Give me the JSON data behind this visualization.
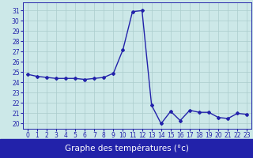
{
  "x": [
    0,
    1,
    2,
    3,
    4,
    5,
    6,
    7,
    8,
    9,
    10,
    11,
    12,
    13,
    14,
    15,
    16,
    17,
    18,
    19,
    20,
    21,
    22,
    23
  ],
  "y": [
    24.8,
    24.6,
    24.5,
    24.4,
    24.4,
    24.4,
    24.3,
    24.4,
    24.5,
    24.9,
    27.2,
    30.9,
    31.0,
    21.8,
    20.0,
    21.2,
    20.3,
    21.3,
    21.1,
    21.1,
    20.6,
    20.5,
    21.0,
    20.9
  ],
  "line_color": "#2222aa",
  "marker": "D",
  "markersize": 2.0,
  "linewidth": 1.0,
  "bg_color": "#cce8e8",
  "grid_color": "#aacccc",
  "xlabel": "Graphe des températures (°c)",
  "xlabel_color": "#ffffff",
  "xlabel_bg": "#2222aa",
  "xlabel_fontsize": 7.5,
  "ylabel_ticks": [
    20,
    21,
    22,
    23,
    24,
    25,
    26,
    27,
    28,
    29,
    30,
    31
  ],
  "xlabel_ticks": [
    0,
    1,
    2,
    3,
    4,
    5,
    6,
    7,
    8,
    9,
    10,
    11,
    12,
    13,
    14,
    15,
    16,
    17,
    18,
    19,
    20,
    21,
    22,
    23
  ],
  "ylim": [
    19.5,
    31.8
  ],
  "xlim": [
    -0.5,
    23.5
  ],
  "tick_fontsize": 5.5,
  "tick_color": "#2222aa"
}
